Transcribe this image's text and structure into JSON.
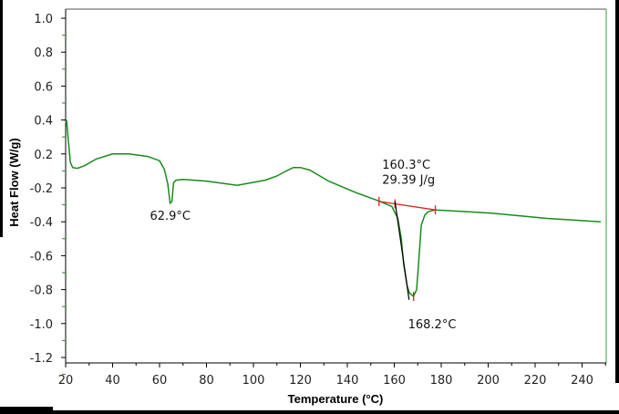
{
  "chart_data": {
    "type": "line",
    "title": "",
    "xlabel": "Temperature (°C)",
    "ylabel": "Heat Flow (W/g)",
    "xlim": [
      20,
      250
    ],
    "x_ticks": [
      "20",
      "40",
      "60",
      "80",
      "100",
      "120",
      "140",
      "160",
      "180",
      "200",
      "220",
      "240"
    ],
    "y_ticks": [
      "1.0",
      "0.8",
      "0.6",
      "0.4",
      "0.2",
      "-0.2",
      "-0.4",
      "-0.6",
      "-0.8",
      "-1.0",
      "-1.2"
    ],
    "y_tick_values": [
      1.0,
      0.8,
      0.6,
      0.4,
      0.2,
      -0.2,
      -0.4,
      -0.6,
      -0.8,
      -1.0,
      -1.2
    ],
    "grid": false,
    "series": [
      {
        "name": "Heat Flow",
        "color": "#1a8a1a",
        "x": [
          20,
          20.4,
          21,
          22,
          23,
          25,
          28,
          33,
          40,
          47,
          55,
          60,
          62,
          63.5,
          64.5,
          65.3,
          66,
          67,
          70,
          80,
          93,
          105,
          110,
          114,
          117,
          120,
          124,
          132,
          144,
          154,
          159,
          161.5,
          163,
          164,
          165.5,
          166.5,
          168.2,
          169.5,
          170.5,
          171.5,
          173,
          174.5,
          177.5,
          190,
          202,
          225,
          248
        ],
        "y": [
          0.38,
          0.4,
          0.3,
          0.1,
          0.04,
          0.03,
          0.06,
          0.14,
          0.2,
          0.2,
          0.17,
          0.12,
          0.02,
          -0.15,
          -0.29,
          -0.28,
          -0.14,
          -0.11,
          -0.1,
          -0.12,
          -0.17,
          -0.11,
          -0.06,
          0.0,
          0.04,
          0.04,
          0.01,
          -0.12,
          -0.23,
          -0.28,
          -0.31,
          -0.38,
          -0.5,
          -0.65,
          -0.78,
          -0.82,
          -0.84,
          -0.8,
          -0.62,
          -0.42,
          -0.36,
          -0.34,
          -0.33,
          -0.34,
          -0.35,
          -0.38,
          -0.4
        ]
      }
    ],
    "integration_baseline": {
      "color": "#e02020",
      "x": [
        153.5,
        177.5
      ],
      "y": [
        -0.28,
        -0.33
      ],
      "tick_x": [
        153.5,
        160.3,
        177.5
      ]
    },
    "onset_tangent": {
      "color": "#000000",
      "x": [
        160.3,
        166.3
      ],
      "y": [
        -0.28,
        -0.86
      ]
    },
    "peak_marker": {
      "x": 168.2,
      "y": -0.84
    },
    "annotations": [
      {
        "text": "62.9°C",
        "x": 62.9,
        "y": -0.36
      },
      {
        "text": "160.3°C",
        "x": 160.3,
        "y": 0.08
      },
      {
        "text": "29.39 J/g",
        "x": 160.3,
        "y": -0.1
      },
      {
        "text": "168.2°C",
        "x": 168.2,
        "y": -1.0
      }
    ]
  }
}
